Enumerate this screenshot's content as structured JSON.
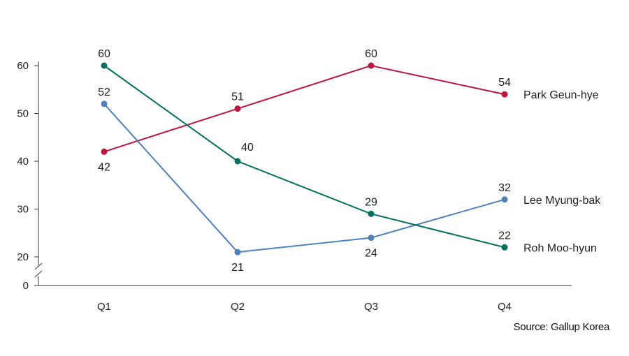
{
  "chart_data": {
    "type": "line",
    "title": "",
    "xlabel": "",
    "ylabel": "",
    "categories": [
      "Q1",
      "Q2",
      "Q3",
      "Q4"
    ],
    "y_ticks": [
      "60",
      "50",
      "40",
      "30",
      "20",
      "0"
    ],
    "ylim": [
      20,
      60
    ],
    "axis_break": true,
    "grid": false,
    "legend": "direct labels at right end of each line",
    "series": [
      {
        "name": "Park Geun-hye",
        "color": "#c0143c",
        "values": [
          42,
          51,
          60,
          54
        ],
        "label_pos": [
          "below",
          "above",
          "above",
          "above"
        ]
      },
      {
        "name": "Lee Myung-bak",
        "color": "#4f81bd",
        "values": [
          52,
          21,
          24,
          32
        ],
        "label_pos": [
          "above",
          "below",
          "below",
          "above"
        ]
      },
      {
        "name": "Roh Moo-hyun",
        "color": "#007060",
        "values": [
          60,
          40,
          29,
          22
        ],
        "label_pos": [
          "above",
          "above-right",
          "above",
          "above"
        ]
      }
    ],
    "source": "Source: Gallup Korea"
  }
}
